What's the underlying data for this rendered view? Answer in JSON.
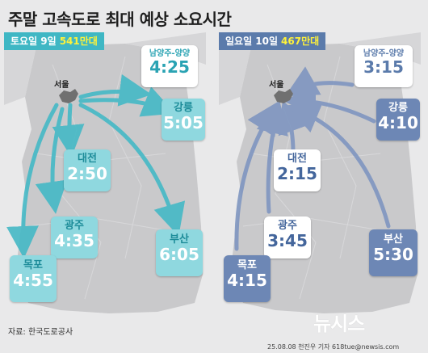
{
  "title": "주말 고속도로 최대 예상 소요시간",
  "saturday": {
    "label": "토요일 9일",
    "volume": "541만대",
    "seoul": "서울",
    "destinations": [
      {
        "name": "남양주-양양",
        "time": "4:25"
      },
      {
        "name": "강릉",
        "time": "5:05"
      },
      {
        "name": "대전",
        "time": "2:50"
      },
      {
        "name": "광주",
        "time": "4:35"
      },
      {
        "name": "부산",
        "time": "6:05"
      },
      {
        "name": "목포",
        "time": "4:55"
      }
    ]
  },
  "sunday": {
    "label": "일요일 10일",
    "volume": "467만대",
    "seoul": "서울",
    "destinations": [
      {
        "name": "남양주-양양",
        "time": "3:15"
      },
      {
        "name": "강릉",
        "time": "4:10"
      },
      {
        "name": "대전",
        "time": "2:15"
      },
      {
        "name": "광주",
        "time": "3:45"
      },
      {
        "name": "부산",
        "time": "5:30"
      },
      {
        "name": "목포",
        "time": "4:15"
      }
    ]
  },
  "source": "자료: 한국도로공사",
  "logo": "뉴시스",
  "credit": "25.08.08 천진우 기자 618tue@newsis.com",
  "colors": {
    "teal": "#3fb7c4",
    "blue": "#5b7bab",
    "highlight": "#fff23a",
    "map": "#c9c9cb"
  }
}
